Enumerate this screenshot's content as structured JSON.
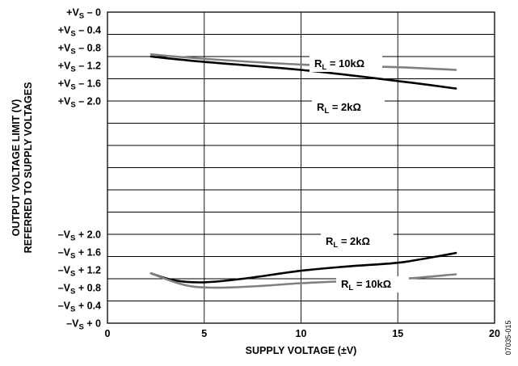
{
  "chart_data": {
    "type": "line",
    "title": "",
    "xlabel": "SUPPLY VOLTAGE (±V)",
    "ylabel": [
      "OUTPUT VOLTAGE LIMIT (V)",
      "REFERRED TO SUPPLY VOLTAGES"
    ],
    "xlim": [
      0,
      20
    ],
    "x_ticks": [
      0,
      5,
      10,
      15,
      20
    ],
    "x_tick_labels": [
      "0",
      "5",
      "10",
      "15",
      "20"
    ],
    "grid": true,
    "upper_panel": {
      "ylim_relative_to_plus_vs": [
        0,
        4.0
      ],
      "y_ticks": [
        {
          "value": 0,
          "prefix": "+V",
          "sub": "S",
          "suffix": " – 0"
        },
        {
          "value": 0.4,
          "prefix": "+V",
          "sub": "S",
          "suffix": " – 0.4"
        },
        {
          "value": 0.8,
          "prefix": "+V",
          "sub": "S",
          "suffix": " – 0.8"
        },
        {
          "value": 1.2,
          "prefix": "+V",
          "sub": "S",
          "suffix": " – 1.2"
        },
        {
          "value": 1.6,
          "prefix": "+V",
          "sub": "S",
          "suffix": " – 1.6"
        },
        {
          "value": 2.0,
          "prefix": "+V",
          "sub": "S",
          "suffix": " – 2.0"
        }
      ]
    },
    "lower_panel": {
      "ylim_relative_to_minus_vs": [
        0,
        4.0
      ],
      "y_ticks": [
        {
          "value": 2.0,
          "prefix": "–V",
          "sub": "S",
          "suffix": " + 2.0"
        },
        {
          "value": 1.6,
          "prefix": "–V",
          "sub": "S",
          "suffix": " + 1.6"
        },
        {
          "value": 1.2,
          "prefix": "–V",
          "sub": "S",
          "suffix": " + 1.2"
        },
        {
          "value": 0.8,
          "prefix": "–V",
          "sub": "S",
          "suffix": " + 0.8"
        },
        {
          "value": 0.4,
          "prefix": "–V",
          "sub": "S",
          "suffix": " + 0.4"
        },
        {
          "value": 0,
          "prefix": "–V",
          "sub": "S",
          "suffix": " + 0"
        }
      ]
    },
    "series": [
      {
        "name": "R_L = 10kΩ",
        "label_prefix": "R",
        "label_sub": "L",
        "label_suffix": " = 10kΩ",
        "panel": "upper",
        "color": "#808080",
        "x": [
          2.25,
          5,
          10,
          15,
          18
        ],
        "y": [
          0.95,
          1.05,
          1.18,
          1.24,
          1.3
        ]
      },
      {
        "name": "R_L = 2kΩ",
        "label_prefix": "R",
        "label_sub": "L",
        "label_suffix": " = 2kΩ",
        "panel": "upper",
        "color": "#000000",
        "x": [
          2.25,
          5,
          10,
          15,
          18
        ],
        "y": [
          1.0,
          1.12,
          1.3,
          1.55,
          1.72
        ]
      },
      {
        "name": "R_L = 2kΩ",
        "label_prefix": "R",
        "label_sub": "L",
        "label_suffix": " = 2kΩ",
        "panel": "lower",
        "color": "#000000",
        "x": [
          2.25,
          3.5,
          5,
          7,
          10,
          12.5,
          15,
          17,
          18
        ],
        "y": [
          1.12,
          0.96,
          0.92,
          1.0,
          1.18,
          1.28,
          1.36,
          1.5,
          1.58
        ]
      },
      {
        "name": "R_L = 10kΩ",
        "label_prefix": "R",
        "label_sub": "L",
        "label_suffix": " = 10kΩ",
        "panel": "lower",
        "color": "#808080",
        "x": [
          2.25,
          3.5,
          4.5,
          6,
          8,
          10,
          12.5,
          15,
          18
        ],
        "y": [
          1.12,
          0.92,
          0.82,
          0.8,
          0.84,
          0.9,
          0.95,
          0.99,
          1.1
        ]
      }
    ],
    "figure_id": "07035-015"
  }
}
